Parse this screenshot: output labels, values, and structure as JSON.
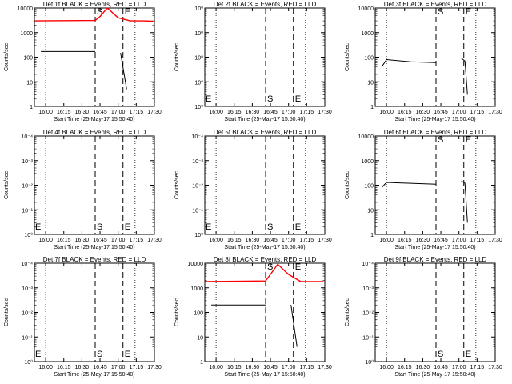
{
  "chart_data": [
    {
      "type": "line",
      "title": "Det 1f BLACK = Events, RED = LLD",
      "xlabel": "Start Time (25-May-17 15:50:40)",
      "ylabel": "Counts/sec",
      "yscale": "log",
      "ylim": [
        1,
        10000
      ],
      "yticks": [
        "1",
        "10",
        "100",
        "1000",
        "10000"
      ],
      "xticks": [
        "16:00",
        "16:15",
        "16:30",
        "16:45",
        "17:00",
        "17:15",
        "17:30"
      ],
      "markers": [
        {
          "label": "S",
          "x": "16:41"
        },
        {
          "label": "E",
          "x": "17:04"
        }
      ],
      "series": [
        {
          "color": "#000000",
          "x": [
            "15:56",
            "16:41"
          ],
          "y": [
            170,
            170
          ]
        },
        {
          "color": "#000000",
          "x": [
            "17:02",
            "17:07"
          ],
          "y": [
            150,
            5
          ]
        },
        {
          "color": "#ff0000",
          "x": [
            "15:51",
            "16:41",
            "16:45",
            "16:51",
            "17:00",
            "17:10",
            "17:20",
            "17:29"
          ],
          "y": [
            3000,
            3100,
            4500,
            10000,
            4000,
            3000,
            3000,
            2900
          ]
        }
      ]
    },
    {
      "type": "line",
      "title": "Det 2f BLACK = Events, RED = LLD",
      "xlabel": "Start Time (25-May-17 15:50:40)",
      "ylabel": "Counts/sec",
      "yscale": "log",
      "ylim": [
        1,
        10000
      ],
      "yticks": [
        "10⁰",
        "10⁰",
        "10⁰",
        "10⁰",
        "10⁰"
      ],
      "xticks": [
        "16:00",
        "16:15",
        "16:30",
        "16:45",
        "17:00",
        "17:15",
        "17:30"
      ],
      "markers": [
        {
          "label": "S",
          "x": "16:41"
        },
        {
          "label": "E",
          "x": "17:04"
        }
      ],
      "corner_label": "E",
      "series": []
    },
    {
      "type": "line",
      "title": "Det 3f BLACK = Events, RED = LLD",
      "xlabel": "Start Time (25-May-17 15:50:40)",
      "ylabel": "Counts/sec",
      "yscale": "log",
      "ylim": [
        1,
        10000
      ],
      "yticks": [
        "1",
        "10",
        "100",
        "1000",
        "10000"
      ],
      "xticks": [
        "16:00",
        "16:15",
        "16:30",
        "16:45",
        "17:00",
        "17:15",
        "17:30"
      ],
      "markers": [
        {
          "label": "S",
          "x": "16:41"
        },
        {
          "label": "E",
          "x": "17:04"
        }
      ],
      "series": [
        {
          "color": "#000000",
          "x": [
            "15:56",
            "16:00",
            "16:20",
            "16:41"
          ],
          "y": [
            40,
            80,
            65,
            60
          ]
        },
        {
          "color": "#000000",
          "x": [
            "17:02",
            "17:05",
            "17:07"
          ],
          "y": [
            90,
            70,
            3
          ]
        }
      ]
    },
    {
      "type": "line",
      "title": "Det 4f BLACK = Events, RED = LLD",
      "xlabel": "Start Time (25-May-17 15:50:40)",
      "ylabel": "Counts/sec",
      "yscale": "log",
      "ylim": [
        1,
        10000
      ],
      "yticks": [
        "10⁰",
        "10⁻¹",
        "10⁻²",
        "10⁻³",
        "10⁻⁴"
      ],
      "xticks": [
        "16:00",
        "16:15",
        "16:30",
        "16:45",
        "17:00",
        "17:15",
        "17:30"
      ],
      "markers": [
        {
          "label": "S",
          "x": "16:41"
        },
        {
          "label": "E",
          "x": "17:04"
        }
      ],
      "corner_label": "E",
      "series": []
    },
    {
      "type": "line",
      "title": "Det 5f BLACK = Events, RED = LLD",
      "xlabel": "Start Time (25-May-17 15:50:40)",
      "ylabel": "Counts/sec",
      "yscale": "log",
      "ylim": [
        1,
        10000
      ],
      "yticks": [
        "10⁰",
        "10⁻¹",
        "10⁻²",
        "10⁻³",
        "10⁻⁴"
      ],
      "xticks": [
        "16:00",
        "16:15",
        "16:30",
        "16:45",
        "17:00",
        "17:15",
        "17:30"
      ],
      "markers": [
        {
          "label": "S",
          "x": "16:41"
        },
        {
          "label": "E",
          "x": "17:04"
        }
      ],
      "corner_label": "E",
      "series": []
    },
    {
      "type": "line",
      "title": "Det 6f BLACK = Events, RED = LLD",
      "xlabel": "Start Time (25-May-17 15:50:40)",
      "ylabel": "Counts/sec",
      "yscale": "log",
      "ylim": [
        1,
        10000
      ],
      "yticks": [
        "1",
        "10",
        "100",
        "1000",
        "10000"
      ],
      "xticks": [
        "16:00",
        "16:15",
        "16:30",
        "16:45",
        "17:00",
        "17:15",
        "17:30"
      ],
      "markers": [
        {
          "label": "S",
          "x": "16:41"
        },
        {
          "label": "E",
          "x": "17:04"
        }
      ],
      "series": [
        {
          "color": "#000000",
          "x": [
            "15:56",
            "16:00",
            "16:20",
            "16:41"
          ],
          "y": [
            80,
            130,
            120,
            110
          ]
        },
        {
          "color": "#000000",
          "x": [
            "17:02",
            "17:05",
            "17:07"
          ],
          "y": [
            150,
            120,
            3
          ]
        }
      ]
    },
    {
      "type": "line",
      "title": "Det 7f BLACK = Events, RED = LLD",
      "xlabel": "Start Time (25-May-17 15:50:40)",
      "ylabel": "Counts/sec",
      "yscale": "log",
      "ylim": [
        1,
        10000
      ],
      "yticks": [
        "10⁰",
        "10⁻¹",
        "10⁻²",
        "10⁻³",
        "10⁻⁴"
      ],
      "xticks": [
        "16:00",
        "16:15",
        "16:30",
        "16:45",
        "17:00",
        "17:15",
        "17:30"
      ],
      "markers": [
        {
          "label": "S",
          "x": "16:41"
        },
        {
          "label": "E",
          "x": "17:04"
        }
      ],
      "corner_label": "E",
      "series": []
    },
    {
      "type": "line",
      "title": "Det 8f BLACK = Events, RED = LLD",
      "xlabel": "Start Time (25-May-17 15:50:40)",
      "ylabel": "Counts/sec",
      "yscale": "log",
      "ylim": [
        1,
        10000
      ],
      "yticks": [
        "1",
        "10",
        "100",
        "1000",
        "10000"
      ],
      "xticks": [
        "16:00",
        "16:15",
        "16:30",
        "16:45",
        "17:00",
        "17:15",
        "17:30"
      ],
      "markers": [
        {
          "label": "S",
          "x": "16:41"
        },
        {
          "label": "E",
          "x": "17:04"
        }
      ],
      "series": [
        {
          "color": "#000000",
          "x": [
            "15:56",
            "16:41"
          ],
          "y": [
            200,
            200
          ]
        },
        {
          "color": "#000000",
          "x": [
            "17:02",
            "17:07"
          ],
          "y": [
            200,
            4
          ]
        },
        {
          "color": "#ff0000",
          "x": [
            "15:51",
            "16:41",
            "16:45",
            "16:51",
            "17:00",
            "17:10",
            "17:20",
            "17:29"
          ],
          "y": [
            1800,
            1900,
            3500,
            9000,
            3500,
            1800,
            1800,
            1800
          ]
        }
      ]
    },
    {
      "type": "line",
      "title": "Det 9f BLACK = Events, RED = LLD",
      "xlabel": "Start Time (25-May-17 15:50:40)",
      "ylabel": "Counts/sec",
      "yscale": "log",
      "ylim": [
        1,
        10000
      ],
      "yticks": [
        "10⁰",
        "10⁻¹",
        "10⁻²",
        "10⁻³",
        "10⁻⁴"
      ],
      "xticks": [
        "16:00",
        "16:15",
        "16:30",
        "16:45",
        "17:00",
        "17:15",
        "17:30"
      ],
      "markers": [
        {
          "label": "S",
          "x": "16:41"
        },
        {
          "label": "E",
          "x": "17:04"
        }
      ],
      "series": []
    }
  ]
}
